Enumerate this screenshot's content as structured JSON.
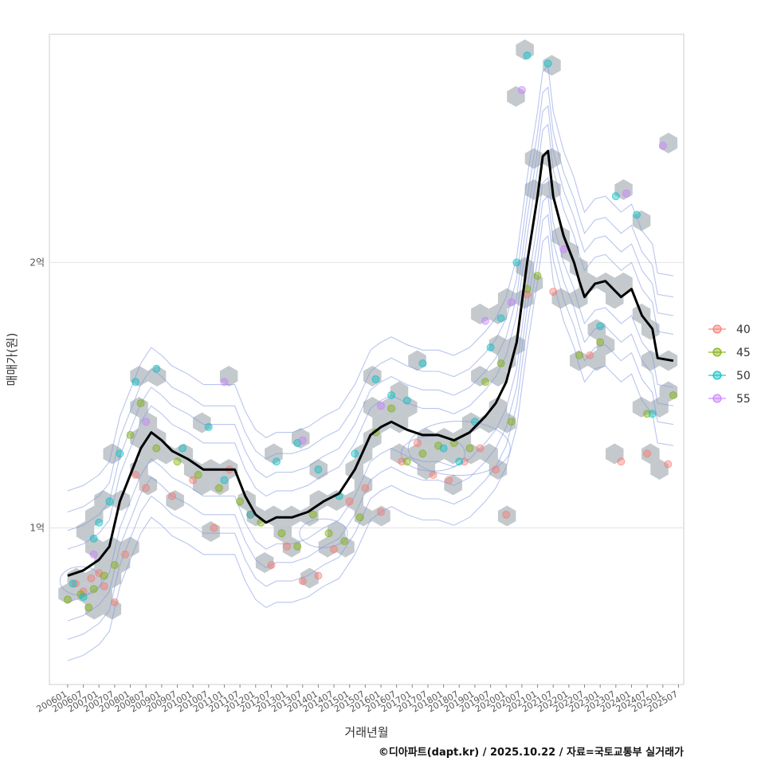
{
  "chart_data": {
    "type": "scatter",
    "title": "",
    "xlabel": "거래년월",
    "ylabel": "매매가(원)",
    "caption": "©디아파트(dapt.kr) / 2025.10.22 / 자료=국토교통부 실거래가",
    "x_ticks": [
      "200601",
      "200607",
      "200701",
      "200707",
      "200801",
      "200807",
      "200901",
      "200907",
      "201001",
      "201007",
      "201101",
      "201107",
      "201201",
      "201207",
      "201301",
      "201307",
      "201401",
      "201407",
      "201501",
      "201507",
      "201601",
      "201607",
      "201701",
      "201707",
      "201801",
      "201807",
      "201901",
      "201907",
      "202001",
      "202007",
      "202101",
      "202107",
      "202201",
      "202207",
      "202301",
      "202307",
      "202401",
      "202407",
      "202501",
      "202507"
    ],
    "y_ticks": [
      {
        "label": "1억",
        "value": 1.0
      },
      {
        "label": "2억",
        "value": 2.0
      }
    ],
    "ylim": [
      0.41,
      2.86
    ],
    "x_range_months": [
      -7,
      236
    ],
    "legend": {
      "position": "right",
      "entries": [
        {
          "label": "40",
          "color": "#F8766D"
        },
        {
          "label": "45",
          "color": "#7CAE00"
        },
        {
          "label": "50",
          "color": "#00BFC4"
        },
        {
          "label": "55",
          "color": "#C77CFF"
        }
      ]
    },
    "hex_color": "#b9bfc4",
    "contour_color": "#7f96e0",
    "trend": {
      "name": "moving average",
      "color": "#000000",
      "points": [
        [
          0,
          0.82
        ],
        [
          6,
          0.84
        ],
        [
          12,
          0.88
        ],
        [
          16,
          0.93
        ],
        [
          20,
          1.1
        ],
        [
          24,
          1.2
        ],
        [
          28,
          1.3
        ],
        [
          32,
          1.36
        ],
        [
          36,
          1.33
        ],
        [
          40,
          1.29
        ],
        [
          46,
          1.26
        ],
        [
          52,
          1.22
        ],
        [
          60,
          1.22
        ],
        [
          64,
          1.22
        ],
        [
          68,
          1.12
        ],
        [
          72,
          1.05
        ],
        [
          76,
          1.02
        ],
        [
          80,
          1.04
        ],
        [
          86,
          1.04
        ],
        [
          92,
          1.06
        ],
        [
          98,
          1.1
        ],
        [
          104,
          1.13
        ],
        [
          110,
          1.22
        ],
        [
          116,
          1.35
        ],
        [
          120,
          1.38
        ],
        [
          124,
          1.4
        ],
        [
          130,
          1.37
        ],
        [
          136,
          1.35
        ],
        [
          142,
          1.35
        ],
        [
          148,
          1.33
        ],
        [
          154,
          1.36
        ],
        [
          160,
          1.42
        ],
        [
          164,
          1.47
        ],
        [
          168,
          1.55
        ],
        [
          172,
          1.7
        ],
        [
          176,
          2.0
        ],
        [
          180,
          2.25
        ],
        [
          182,
          2.4
        ],
        [
          184,
          2.42
        ],
        [
          186,
          2.25
        ],
        [
          190,
          2.1
        ],
        [
          194,
          2.0
        ],
        [
          196,
          1.93
        ],
        [
          198,
          1.87
        ],
        [
          202,
          1.92
        ],
        [
          206,
          1.93
        ],
        [
          212,
          1.87
        ],
        [
          216,
          1.9
        ],
        [
          220,
          1.8
        ],
        [
          224,
          1.75
        ],
        [
          226,
          1.64
        ],
        [
          232,
          1.63
        ]
      ]
    },
    "series": [
      {
        "name": "40",
        "color": "#F8766D",
        "points": [
          [
            3,
            0.79
          ],
          [
            6,
            0.76
          ],
          [
            9,
            0.81
          ],
          [
            12,
            0.83
          ],
          [
            14,
            0.78
          ],
          [
            18,
            0.72
          ],
          [
            22,
            0.9
          ],
          [
            26,
            1.2
          ],
          [
            30,
            1.15
          ],
          [
            40,
            1.12
          ],
          [
            48,
            1.18
          ],
          [
            56,
            1.0
          ],
          [
            62,
            1.22
          ],
          [
            70,
            1.05
          ],
          [
            78,
            0.86
          ],
          [
            84,
            0.93
          ],
          [
            90,
            0.8
          ],
          [
            96,
            0.82
          ],
          [
            102,
            0.92
          ],
          [
            108,
            1.1
          ],
          [
            114,
            1.15
          ],
          [
            120,
            1.06
          ],
          [
            128,
            1.25
          ],
          [
            134,
            1.32
          ],
          [
            140,
            1.2
          ],
          [
            146,
            1.18
          ],
          [
            152,
            1.25
          ],
          [
            158,
            1.3
          ],
          [
            164,
            1.22
          ],
          [
            168,
            1.05
          ],
          [
            176,
            1.88
          ],
          [
            186,
            1.89
          ],
          [
            200,
            1.65
          ],
          [
            212,
            1.25
          ],
          [
            222,
            1.28
          ],
          [
            230,
            1.24
          ]
        ]
      },
      {
        "name": "45",
        "color": "#7CAE00",
        "points": [
          [
            0,
            0.73
          ],
          [
            5,
            0.75
          ],
          [
            8,
            0.7
          ],
          [
            10,
            0.77
          ],
          [
            14,
            0.82
          ],
          [
            18,
            0.86
          ],
          [
            24,
            1.35
          ],
          [
            28,
            1.47
          ],
          [
            34,
            1.3
          ],
          [
            42,
            1.25
          ],
          [
            50,
            1.2
          ],
          [
            58,
            1.15
          ],
          [
            66,
            1.1
          ],
          [
            74,
            1.02
          ],
          [
            82,
            0.98
          ],
          [
            88,
            0.93
          ],
          [
            94,
            1.05
          ],
          [
            100,
            0.98
          ],
          [
            106,
            0.95
          ],
          [
            112,
            1.04
          ],
          [
            118,
            1.36
          ],
          [
            124,
            1.45
          ],
          [
            130,
            1.25
          ],
          [
            136,
            1.28
          ],
          [
            142,
            1.31
          ],
          [
            148,
            1.32
          ],
          [
            154,
            1.3
          ],
          [
            160,
            1.55
          ],
          [
            166,
            1.62
          ],
          [
            170,
            1.4
          ],
          [
            176,
            1.9
          ],
          [
            180,
            1.95
          ],
          [
            196,
            1.65
          ],
          [
            204,
            1.7
          ],
          [
            222,
            1.43
          ],
          [
            232,
            1.5
          ]
        ]
      },
      {
        "name": "50",
        "color": "#00BFC4",
        "points": [
          [
            2,
            0.79
          ],
          [
            6,
            0.74
          ],
          [
            10,
            0.96
          ],
          [
            12,
            1.02
          ],
          [
            16,
            1.1
          ],
          [
            20,
            1.28
          ],
          [
            26,
            1.55
          ],
          [
            34,
            1.6
          ],
          [
            44,
            1.3
          ],
          [
            54,
            1.38
          ],
          [
            60,
            1.18
          ],
          [
            70,
            1.05
          ],
          [
            80,
            1.25
          ],
          [
            88,
            1.32
          ],
          [
            96,
            1.22
          ],
          [
            104,
            1.12
          ],
          [
            110,
            1.28
          ],
          [
            118,
            1.56
          ],
          [
            124,
            1.5
          ],
          [
            130,
            1.48
          ],
          [
            136,
            1.62
          ],
          [
            144,
            1.3
          ],
          [
            150,
            1.25
          ],
          [
            156,
            1.4
          ],
          [
            162,
            1.68
          ],
          [
            166,
            1.79
          ],
          [
            172,
            2.0
          ],
          [
            176,
            2.78
          ],
          [
            184,
            2.75
          ],
          [
            204,
            1.76
          ],
          [
            210,
            2.25
          ],
          [
            218,
            2.18
          ],
          [
            224,
            1.43
          ]
        ]
      },
      {
        "name": "55",
        "color": "#C77CFF",
        "points": [
          [
            10,
            0.9
          ],
          [
            30,
            1.4
          ],
          [
            60,
            1.55
          ],
          [
            90,
            1.33
          ],
          [
            120,
            1.46
          ],
          [
            160,
            1.78
          ],
          [
            170,
            1.85
          ],
          [
            174,
            2.65
          ],
          [
            190,
            2.05
          ],
          [
            214,
            2.26
          ],
          [
            228,
            2.44
          ]
        ]
      }
    ]
  }
}
